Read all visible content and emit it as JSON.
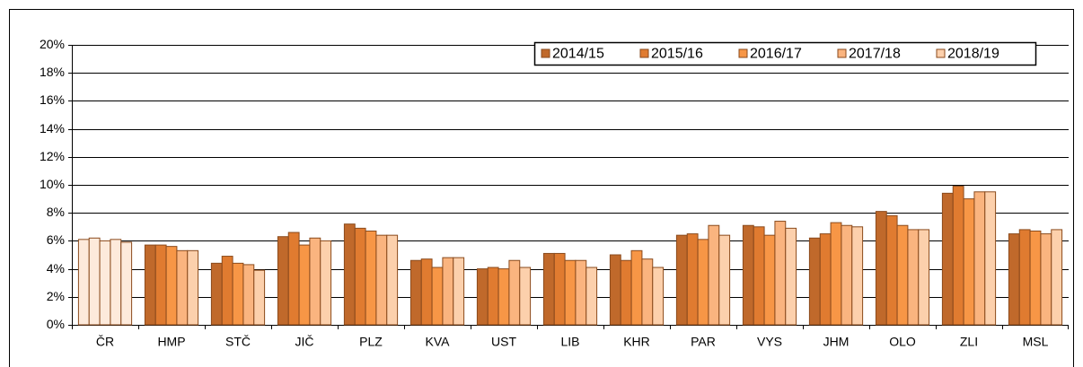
{
  "chart_data": {
    "type": "bar",
    "categories": [
      "ČR",
      "HMP",
      "STČ",
      "JIČ",
      "PLZ",
      "KVA",
      "UST",
      "LIB",
      "KHR",
      "PAR",
      "VYS",
      "JHM",
      "OLO",
      "ZLI",
      "MSL"
    ],
    "series": [
      {
        "name": "2014/15",
        "color": "#c0692b",
        "values": [
          6.1,
          5.7,
          4.4,
          6.3,
          7.2,
          4.6,
          4.0,
          5.1,
          5.0,
          6.4,
          7.1,
          6.2,
          8.1,
          9.4,
          6.5
        ]
      },
      {
        "name": "2015/16",
        "color": "#e07b30",
        "values": [
          6.2,
          5.7,
          4.9,
          6.6,
          6.9,
          4.7,
          4.1,
          5.1,
          4.6,
          6.5,
          7.0,
          6.5,
          7.8,
          9.9,
          6.8
        ]
      },
      {
        "name": "2016/17",
        "color": "#f79646",
        "values": [
          6.0,
          5.6,
          4.4,
          5.7,
          6.7,
          4.1,
          4.0,
          4.6,
          5.3,
          6.1,
          6.4,
          7.3,
          7.1,
          9.0,
          6.7
        ]
      },
      {
        "name": "2017/18",
        "color": "#fab47f",
        "values": [
          6.1,
          5.3,
          4.3,
          6.2,
          6.4,
          4.8,
          4.6,
          4.6,
          4.7,
          7.1,
          7.4,
          7.1,
          6.8,
          9.5,
          6.5
        ]
      },
      {
        "name": "2018/19",
        "color": "#fcd0ac",
        "values": [
          5.9,
          5.3,
          3.9,
          6.0,
          6.4,
          4.8,
          4.1,
          4.1,
          4.1,
          6.4,
          6.9,
          7.0,
          6.8,
          9.5,
          6.8
        ]
      }
    ],
    "highlight_categories": [
      "ČR"
    ],
    "highlight_color": "#fdeadb",
    "ylim": [
      0,
      20
    ],
    "yticks": [
      {
        "value": 0,
        "label": "0%"
      },
      {
        "value": 2,
        "label": "2%"
      },
      {
        "value": 4,
        "label": "4%"
      },
      {
        "value": 6,
        "label": "6%"
      },
      {
        "value": 8,
        "label": "8%"
      },
      {
        "value": 10,
        "label": "10%"
      },
      {
        "value": 12,
        "label": "12%"
      },
      {
        "value": 14,
        "label": "14%"
      },
      {
        "value": 16,
        "label": "16%"
      },
      {
        "value": 18,
        "label": "18%"
      },
      {
        "value": 20,
        "label": "20%"
      }
    ],
    "grid": true,
    "legend": "top-right"
  }
}
